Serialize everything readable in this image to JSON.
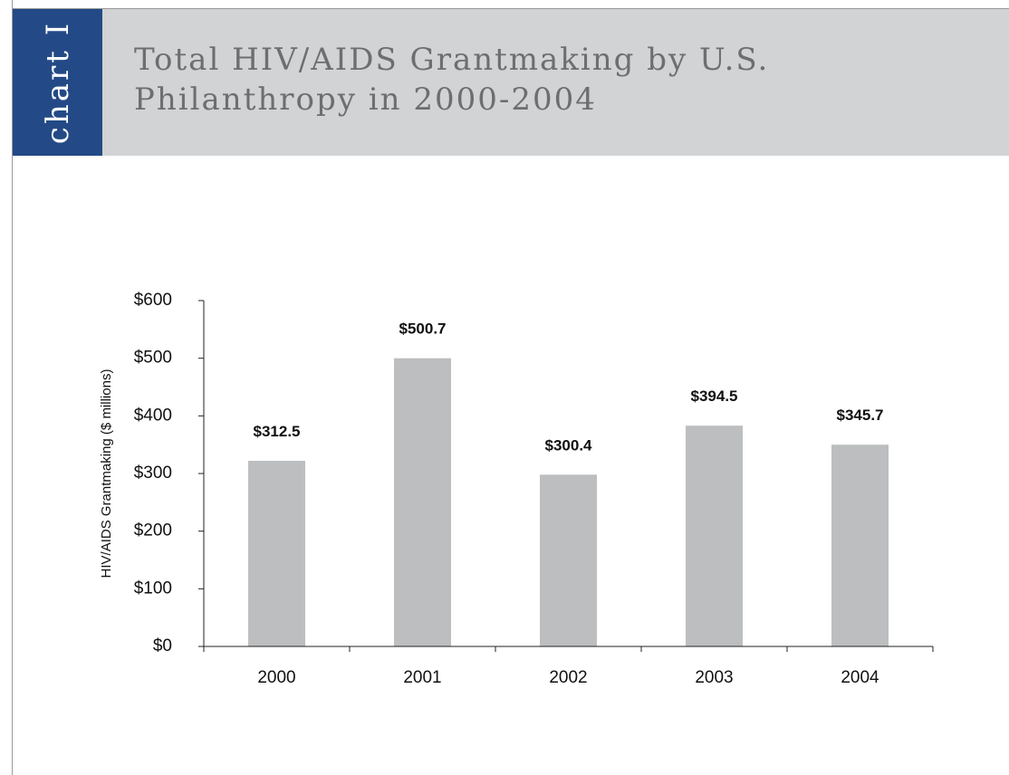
{
  "tab_label": "chart I",
  "title_lines": [
    "Total HIV/AIDS Grantmaking by U.S.",
    "Philanthropy in 2000-2004"
  ],
  "colors": {
    "tab": "#234a86",
    "header": "#d1d3d4",
    "bar": "#bcbec0",
    "title": "#6d6e71"
  },
  "chart_data": {
    "type": "bar",
    "title": "Total HIV/AIDS Grantmaking by U.S. Philanthropy in 2000-2004",
    "xlabel": "",
    "ylabel": "HIV/AIDS Grantmaking ($ millions)",
    "categories": [
      "2000",
      "2001",
      "2002",
      "2003",
      "2004"
    ],
    "values": [
      312.5,
      500.7,
      300.4,
      394.5,
      345.7
    ],
    "bar_heights": [
      322,
      500,
      298,
      383,
      350
    ],
    "value_labels": [
      "$312.5",
      "$500.7",
      "$300.4",
      "$394.5",
      "$345.7"
    ],
    "ylim": [
      0,
      600
    ],
    "yticks": [
      0,
      100,
      200,
      300,
      400,
      500,
      600
    ],
    "ytick_labels": [
      "$0",
      "$100",
      "$200",
      "$300",
      "$400",
      "$500",
      "$600"
    ],
    "grid": false,
    "legend": "none"
  }
}
